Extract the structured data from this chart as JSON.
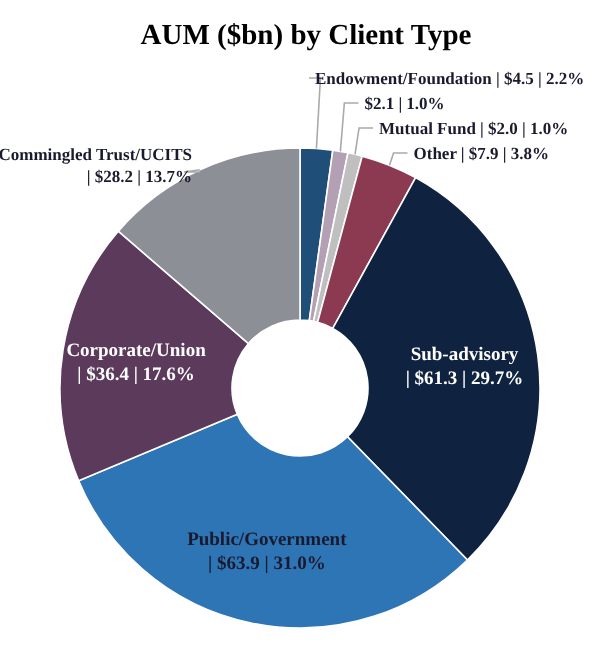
{
  "chart_data": {
    "type": "donut",
    "title": "AUM ($bn) by Client Type",
    "categories": [
      "Endowment/Foundation",
      null,
      "Mutual Fund",
      "Other",
      "Sub-advisory",
      "Public/Government",
      "Corporate/Union",
      "Commingled Trust/UCITS"
    ],
    "values": [
      4.5,
      2.1,
      2.0,
      7.9,
      61.3,
      63.9,
      36.4,
      28.2
    ],
    "value_labels": [
      "| $4.5 | 2.2%",
      "$2.1 | 1.0%",
      "| $2.0 | 1.0%",
      "| $7.9 | 3.8%",
      "| $61.3 | 29.7%",
      "| $63.9 | 31.0%",
      "| $36.4 | 17.6%",
      "| $28.2 | 13.7%"
    ],
    "colors": [
      "#1f4e79",
      "#b4a0b4",
      "#bfbfbf",
      "#8b3a52",
      "#0f2240",
      "#2e75b6",
      "#5b3a5c",
      "#8c9096"
    ]
  }
}
